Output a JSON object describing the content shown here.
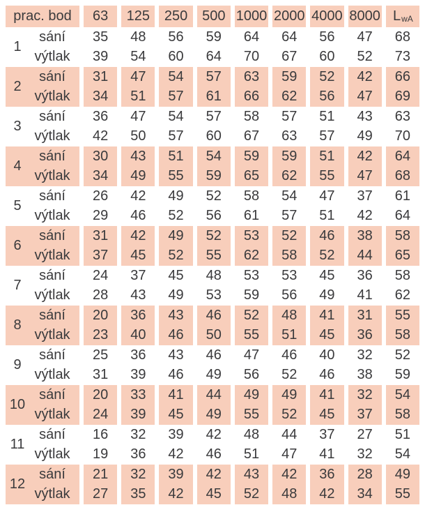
{
  "table": {
    "header": {
      "label": "prac. bod",
      "frequencies": [
        "63",
        "125",
        "250",
        "500",
        "1000",
        "2000",
        "4000",
        "8000"
      ],
      "lwa_main": "L",
      "lwa_sub": "wA"
    },
    "row_labels": {
      "suction": "sání",
      "discharge": "výtlak"
    },
    "groups": [
      {
        "id": "1",
        "sani": [
          35,
          48,
          56,
          59,
          64,
          64,
          56,
          47,
          68
        ],
        "vytlak": [
          39,
          54,
          60,
          64,
          70,
          67,
          60,
          52,
          73
        ]
      },
      {
        "id": "2",
        "sani": [
          31,
          47,
          54,
          57,
          63,
          59,
          52,
          42,
          66
        ],
        "vytlak": [
          34,
          51,
          57,
          61,
          66,
          62,
          56,
          47,
          69
        ]
      },
      {
        "id": "3",
        "sani": [
          36,
          47,
          54,
          57,
          58,
          57,
          51,
          43,
          63
        ],
        "vytlak": [
          42,
          50,
          57,
          60,
          67,
          63,
          57,
          49,
          70
        ]
      },
      {
        "id": "4",
        "sani": [
          30,
          43,
          51,
          54,
          59,
          59,
          51,
          42,
          64
        ],
        "vytlak": [
          34,
          49,
          55,
          59,
          65,
          62,
          55,
          47,
          68
        ]
      },
      {
        "id": "5",
        "sani": [
          26,
          42,
          49,
          52,
          58,
          54,
          47,
          37,
          61
        ],
        "vytlak": [
          29,
          46,
          52,
          56,
          61,
          57,
          51,
          42,
          64
        ]
      },
      {
        "id": "6",
        "sani": [
          31,
          42,
          49,
          52,
          53,
          52,
          46,
          38,
          58
        ],
        "vytlak": [
          37,
          45,
          52,
          55,
          62,
          58,
          52,
          44,
          65
        ]
      },
      {
        "id": "7",
        "sani": [
          24,
          37,
          45,
          48,
          53,
          53,
          45,
          36,
          58
        ],
        "vytlak": [
          28,
          43,
          49,
          53,
          59,
          56,
          49,
          41,
          62
        ]
      },
      {
        "id": "8",
        "sani": [
          20,
          36,
          43,
          46,
          52,
          48,
          41,
          31,
          55
        ],
        "vytlak": [
          23,
          40,
          46,
          50,
          55,
          51,
          45,
          36,
          58
        ]
      },
      {
        "id": "9",
        "sani": [
          25,
          36,
          43,
          46,
          47,
          46,
          40,
          32,
          52
        ],
        "vytlak": [
          31,
          39,
          46,
          49,
          56,
          52,
          46,
          38,
          59
        ]
      },
      {
        "id": "10",
        "sani": [
          20,
          33,
          41,
          44,
          49,
          49,
          41,
          32,
          54
        ],
        "vytlak": [
          24,
          39,
          45,
          49,
          55,
          52,
          45,
          37,
          58
        ]
      },
      {
        "id": "11",
        "sani": [
          16,
          32,
          39,
          42,
          48,
          44,
          37,
          27,
          51
        ],
        "vytlak": [
          19,
          36,
          42,
          46,
          51,
          47,
          41,
          32,
          54
        ]
      },
      {
        "id": "12",
        "sani": [
          21,
          32,
          39,
          42,
          43,
          42,
          36,
          28,
          49
        ],
        "vytlak": [
          27,
          35,
          42,
          45,
          52,
          48,
          42,
          34,
          55
        ]
      }
    ]
  },
  "colors": {
    "band": "#f8cebb",
    "text": "#3a3a3c"
  }
}
